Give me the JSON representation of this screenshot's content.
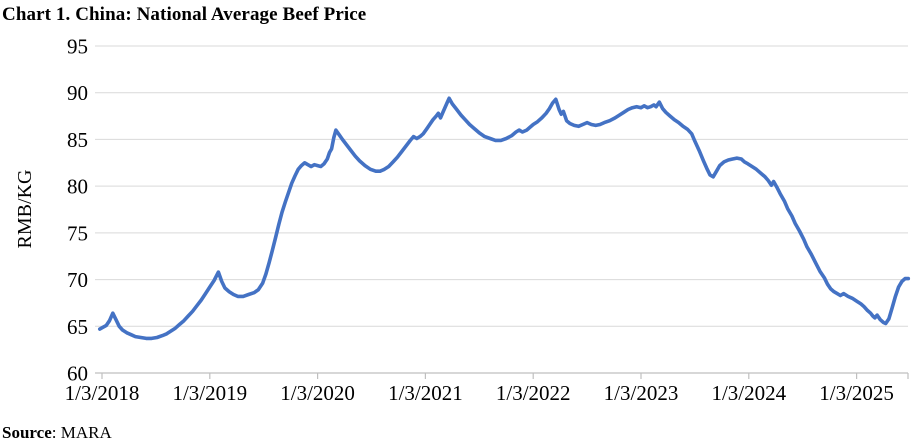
{
  "page": {
    "title": "Chart 1. China: National Average Beef Price",
    "source_label": "Source",
    "source_rest": ": MARA"
  },
  "chart_data": {
    "type": "line",
    "title": "Chart 1. China: National Average Beef Price",
    "xlabel": "",
    "ylabel": "RMB/KG",
    "source": "MARA",
    "legend": "none",
    "grid": "horizontal",
    "ylim": [
      60,
      95
    ],
    "y_tick_step": 5,
    "y_ticks": [
      60,
      65,
      70,
      75,
      80,
      85,
      90,
      95
    ],
    "x_tick_labels": [
      "1/3/2018",
      "1/3/2019",
      "1/3/2020",
      "1/3/2021",
      "1/3/2022",
      "1/3/2023",
      "1/3/2024",
      "1/3/2025"
    ],
    "x_tick_years": [
      2018,
      2019,
      2020,
      2021,
      2022,
      2023,
      2024,
      2025
    ],
    "colors": {
      "line": "#4472C4",
      "grid": "#D9D9D9",
      "axis": "#BFBFBF",
      "text": "#000000",
      "background": "#FFFFFF"
    },
    "series": [
      {
        "name": "National average beef price",
        "unit": "RMB/KG",
        "points": [
          [
            2017.98,
            64.7
          ],
          [
            2018.01,
            64.9
          ],
          [
            2018.04,
            65.1
          ],
          [
            2018.07,
            65.6
          ],
          [
            2018.1,
            66.4
          ],
          [
            2018.13,
            65.7
          ],
          [
            2018.16,
            65.0
          ],
          [
            2018.19,
            64.6
          ],
          [
            2018.23,
            64.3
          ],
          [
            2018.27,
            64.1
          ],
          [
            2018.31,
            63.9
          ],
          [
            2018.36,
            63.8
          ],
          [
            2018.41,
            63.7
          ],
          [
            2018.46,
            63.7
          ],
          [
            2018.51,
            63.8
          ],
          [
            2018.56,
            64.0
          ],
          [
            2018.6,
            64.2
          ],
          [
            2018.64,
            64.5
          ],
          [
            2018.68,
            64.8
          ],
          [
            2018.72,
            65.2
          ],
          [
            2018.76,
            65.6
          ],
          [
            2018.8,
            66.1
          ],
          [
            2018.84,
            66.6
          ],
          [
            2018.88,
            67.2
          ],
          [
            2018.92,
            67.8
          ],
          [
            2018.96,
            68.5
          ],
          [
            2019.0,
            69.2
          ],
          [
            2019.04,
            69.9
          ],
          [
            2019.08,
            70.8
          ],
          [
            2019.11,
            69.8
          ],
          [
            2019.14,
            69.1
          ],
          [
            2019.18,
            68.7
          ],
          [
            2019.22,
            68.4
          ],
          [
            2019.26,
            68.2
          ],
          [
            2019.31,
            68.2
          ],
          [
            2019.36,
            68.4
          ],
          [
            2019.41,
            68.6
          ],
          [
            2019.45,
            68.9
          ],
          [
            2019.49,
            69.6
          ],
          [
            2019.52,
            70.6
          ],
          [
            2019.55,
            71.8
          ],
          [
            2019.58,
            73.1
          ],
          [
            2019.61,
            74.5
          ],
          [
            2019.64,
            75.9
          ],
          [
            2019.67,
            77.2
          ],
          [
            2019.7,
            78.3
          ],
          [
            2019.73,
            79.3
          ],
          [
            2019.76,
            80.3
          ],
          [
            2019.79,
            81.1
          ],
          [
            2019.82,
            81.8
          ],
          [
            2019.85,
            82.2
          ],
          [
            2019.88,
            82.5
          ],
          [
            2019.91,
            82.3
          ],
          [
            2019.94,
            82.1
          ],
          [
            2019.97,
            82.3
          ],
          [
            2020.0,
            82.2
          ],
          [
            2020.03,
            82.1
          ],
          [
            2020.06,
            82.4
          ],
          [
            2020.09,
            82.9
          ],
          [
            2020.11,
            83.6
          ],
          [
            2020.13,
            84.0
          ],
          [
            2020.15,
            85.2
          ],
          [
            2020.17,
            86.0
          ],
          [
            2020.2,
            85.5
          ],
          [
            2020.23,
            85.0
          ],
          [
            2020.27,
            84.4
          ],
          [
            2020.31,
            83.8
          ],
          [
            2020.35,
            83.2
          ],
          [
            2020.39,
            82.7
          ],
          [
            2020.44,
            82.2
          ],
          [
            2020.49,
            81.8
          ],
          [
            2020.54,
            81.6
          ],
          [
            2020.58,
            81.6
          ],
          [
            2020.62,
            81.8
          ],
          [
            2020.66,
            82.1
          ],
          [
            2020.7,
            82.6
          ],
          [
            2020.74,
            83.1
          ],
          [
            2020.78,
            83.7
          ],
          [
            2020.82,
            84.3
          ],
          [
            2020.86,
            84.9
          ],
          [
            2020.89,
            85.3
          ],
          [
            2020.92,
            85.1
          ],
          [
            2020.95,
            85.3
          ],
          [
            2020.98,
            85.6
          ],
          [
            2021.01,
            86.1
          ],
          [
            2021.04,
            86.6
          ],
          [
            2021.07,
            87.1
          ],
          [
            2021.1,
            87.5
          ],
          [
            2021.12,
            87.8
          ],
          [
            2021.14,
            87.3
          ],
          [
            2021.17,
            88.1
          ],
          [
            2021.2,
            88.9
          ],
          [
            2021.22,
            89.4
          ],
          [
            2021.25,
            88.8
          ],
          [
            2021.29,
            88.2
          ],
          [
            2021.33,
            87.6
          ],
          [
            2021.37,
            87.1
          ],
          [
            2021.41,
            86.6
          ],
          [
            2021.45,
            86.2
          ],
          [
            2021.5,
            85.7
          ],
          [
            2021.55,
            85.3
          ],
          [
            2021.6,
            85.1
          ],
          [
            2021.65,
            84.9
          ],
          [
            2021.7,
            84.9
          ],
          [
            2021.75,
            85.1
          ],
          [
            2021.8,
            85.4
          ],
          [
            2021.84,
            85.8
          ],
          [
            2021.87,
            86.0
          ],
          [
            2021.9,
            85.8
          ],
          [
            2021.94,
            86.0
          ],
          [
            2021.97,
            86.3
          ],
          [
            2022.0,
            86.6
          ],
          [
            2022.04,
            86.9
          ],
          [
            2022.08,
            87.3
          ],
          [
            2022.12,
            87.8
          ],
          [
            2022.15,
            88.3
          ],
          [
            2022.18,
            88.9
          ],
          [
            2022.21,
            89.3
          ],
          [
            2022.24,
            88.2
          ],
          [
            2022.26,
            87.7
          ],
          [
            2022.28,
            88.0
          ],
          [
            2022.31,
            87.0
          ],
          [
            2022.34,
            86.7
          ],
          [
            2022.38,
            86.5
          ],
          [
            2022.42,
            86.4
          ],
          [
            2022.46,
            86.6
          ],
          [
            2022.5,
            86.8
          ],
          [
            2022.54,
            86.6
          ],
          [
            2022.58,
            86.5
          ],
          [
            2022.62,
            86.6
          ],
          [
            2022.66,
            86.8
          ],
          [
            2022.71,
            87.0
          ],
          [
            2022.76,
            87.3
          ],
          [
            2022.8,
            87.6
          ],
          [
            2022.84,
            87.9
          ],
          [
            2022.88,
            88.2
          ],
          [
            2022.92,
            88.4
          ],
          [
            2022.96,
            88.5
          ],
          [
            2023.0,
            88.4
          ],
          [
            2023.03,
            88.6
          ],
          [
            2023.06,
            88.4
          ],
          [
            2023.09,
            88.5
          ],
          [
            2023.12,
            88.7
          ],
          [
            2023.14,
            88.5
          ],
          [
            2023.17,
            89.0
          ],
          [
            2023.2,
            88.3
          ],
          [
            2023.23,
            87.9
          ],
          [
            2023.27,
            87.5
          ],
          [
            2023.31,
            87.1
          ],
          [
            2023.35,
            86.8
          ],
          [
            2023.39,
            86.4
          ],
          [
            2023.43,
            86.1
          ],
          [
            2023.47,
            85.6
          ],
          [
            2023.5,
            84.8
          ],
          [
            2023.54,
            83.8
          ],
          [
            2023.58,
            82.7
          ],
          [
            2023.61,
            81.9
          ],
          [
            2023.64,
            81.2
          ],
          [
            2023.67,
            81.0
          ],
          [
            2023.7,
            81.6
          ],
          [
            2023.73,
            82.2
          ],
          [
            2023.77,
            82.6
          ],
          [
            2023.81,
            82.8
          ],
          [
            2023.85,
            82.9
          ],
          [
            2023.89,
            83.0
          ],
          [
            2023.93,
            82.9
          ],
          [
            2023.96,
            82.6
          ],
          [
            2023.99,
            82.4
          ],
          [
            2024.03,
            82.1
          ],
          [
            2024.07,
            81.8
          ],
          [
            2024.11,
            81.4
          ],
          [
            2024.15,
            81.0
          ],
          [
            2024.18,
            80.6
          ],
          [
            2024.21,
            80.1
          ],
          [
            2024.23,
            80.5
          ],
          [
            2024.26,
            79.9
          ],
          [
            2024.29,
            79.2
          ],
          [
            2024.33,
            78.4
          ],
          [
            2024.36,
            77.6
          ],
          [
            2024.4,
            76.8
          ],
          [
            2024.43,
            76.0
          ],
          [
            2024.47,
            75.2
          ],
          [
            2024.51,
            74.3
          ],
          [
            2024.54,
            73.5
          ],
          [
            2024.58,
            72.7
          ],
          [
            2024.62,
            71.8
          ],
          [
            2024.66,
            70.9
          ],
          [
            2024.7,
            70.2
          ],
          [
            2024.73,
            69.5
          ],
          [
            2024.76,
            69.0
          ],
          [
            2024.79,
            68.7
          ],
          [
            2024.82,
            68.5
          ],
          [
            2024.85,
            68.3
          ],
          [
            2024.88,
            68.5
          ],
          [
            2024.92,
            68.2
          ],
          [
            2024.96,
            68.0
          ],
          [
            2025.0,
            67.7
          ],
          [
            2025.04,
            67.4
          ],
          [
            2025.07,
            67.1
          ],
          [
            2025.1,
            66.7
          ],
          [
            2025.13,
            66.4
          ],
          [
            2025.15,
            66.1
          ],
          [
            2025.17,
            65.9
          ],
          [
            2025.19,
            66.2
          ],
          [
            2025.22,
            65.7
          ],
          [
            2025.25,
            65.4
          ],
          [
            2025.27,
            65.3
          ],
          [
            2025.3,
            65.8
          ],
          [
            2025.33,
            67.0
          ],
          [
            2025.36,
            68.2
          ],
          [
            2025.39,
            69.2
          ],
          [
            2025.42,
            69.8
          ],
          [
            2025.45,
            70.1
          ],
          [
            2025.48,
            70.1
          ]
        ]
      }
    ]
  }
}
